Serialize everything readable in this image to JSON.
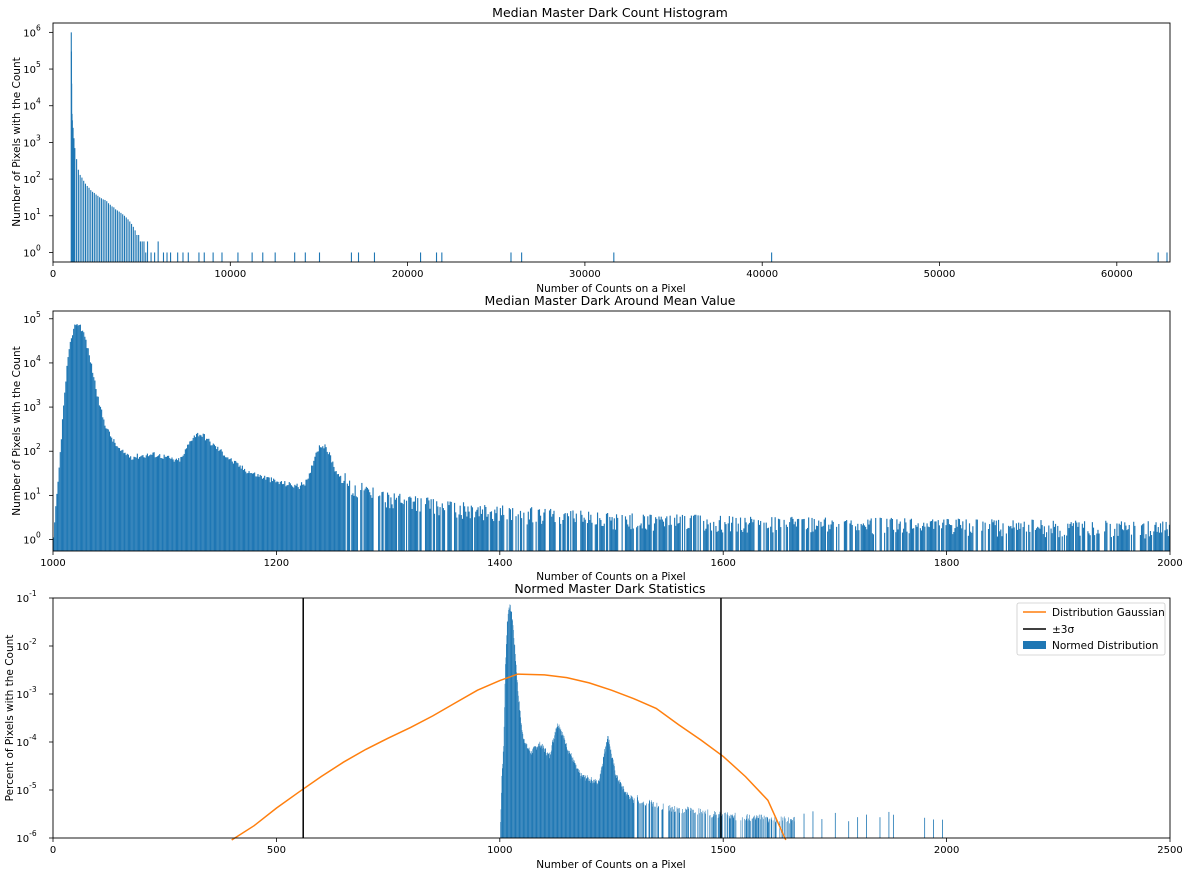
{
  "chart_data": [
    {
      "type": "bar",
      "title": "Median Master Dark Count Histogram",
      "xlabel": "Number of Counts on a Pixel",
      "ylabel": "Number of Pixels with the Count",
      "xlim": [
        0,
        63000
      ],
      "ylim": [
        0.55,
        1800000
      ],
      "yscale": "log",
      "xticks": [
        0,
        10000,
        20000,
        30000,
        40000,
        50000,
        60000
      ],
      "yticks": [
        1,
        10,
        100,
        1000,
        10000,
        100000,
        1000000
      ],
      "color": "#1f77b4",
      "bars": [
        [
          1000,
          1000000
        ],
        [
          1010,
          300000
        ],
        [
          1020,
          40000
        ],
        [
          1040,
          6000
        ],
        [
          1060,
          4000
        ],
        [
          1100,
          2500
        ],
        [
          1150,
          1300
        ],
        [
          1200,
          700
        ],
        [
          1300,
          350
        ],
        [
          1400,
          180
        ],
        [
          1500,
          130
        ],
        [
          1600,
          110
        ],
        [
          1700,
          90
        ],
        [
          1800,
          75
        ],
        [
          1900,
          65
        ],
        [
          2000,
          58
        ],
        [
          2100,
          50
        ],
        [
          2200,
          45
        ],
        [
          2300,
          42
        ],
        [
          2400,
          38
        ],
        [
          2500,
          35
        ],
        [
          2600,
          32
        ],
        [
          2700,
          30
        ],
        [
          2800,
          28
        ],
        [
          2900,
          27
        ],
        [
          3000,
          25
        ],
        [
          3100,
          22
        ],
        [
          3200,
          20
        ],
        [
          3300,
          18
        ],
        [
          3400,
          17
        ],
        [
          3500,
          15
        ],
        [
          3600,
          14
        ],
        [
          3700,
          13
        ],
        [
          3800,
          12
        ],
        [
          3900,
          11
        ],
        [
          4000,
          10
        ],
        [
          4100,
          9
        ],
        [
          4200,
          8
        ],
        [
          4300,
          7
        ],
        [
          4400,
          6
        ],
        [
          4500,
          5
        ],
        [
          4600,
          4
        ],
        [
          4700,
          3
        ],
        [
          4800,
          3
        ],
        [
          4900,
          2
        ],
        [
          5000,
          2
        ],
        [
          5100,
          2
        ],
        [
          5200,
          1
        ],
        [
          5300,
          2
        ],
        [
          5500,
          1
        ],
        [
          5700,
          1
        ],
        [
          5900,
          2
        ],
        [
          6200,
          1
        ],
        [
          6400,
          1
        ],
        [
          6600,
          1
        ],
        [
          7000,
          1
        ],
        [
          7300,
          1
        ],
        [
          7600,
          1
        ],
        [
          8200,
          1
        ],
        [
          8500,
          1
        ],
        [
          9000,
          1
        ],
        [
          9500,
          1
        ],
        [
          10400,
          1
        ],
        [
          11200,
          1
        ],
        [
          11800,
          1
        ],
        [
          12500,
          1
        ],
        [
          13600,
          1
        ],
        [
          14200,
          1
        ],
        [
          15000,
          1
        ],
        [
          16800,
          1
        ],
        [
          17200,
          1
        ],
        [
          18100,
          1
        ],
        [
          20700,
          1
        ],
        [
          21600,
          1
        ],
        [
          21900,
          1
        ],
        [
          25800,
          1
        ],
        [
          26400,
          1
        ],
        [
          31600,
          1
        ],
        [
          40500,
          1
        ],
        [
          62300,
          1
        ],
        [
          62800,
          1
        ]
      ]
    },
    {
      "type": "bar",
      "title": "Median Master Dark Around Mean Value",
      "xlabel": "Number of Counts on a Pixel",
      "ylabel": "Number of Pixels with the Count",
      "xlim": [
        1000,
        2000
      ],
      "ylim": [
        0.55,
        150000
      ],
      "yscale": "log",
      "xticks": [
        1000,
        1200,
        1400,
        1600,
        1800,
        2000
      ],
      "yticks": [
        1,
        10,
        100,
        1000,
        10000,
        100000
      ],
      "color": "#1f77b4",
      "profile": [
        [
          1000,
          1
        ],
        [
          1002,
          5
        ],
        [
          1005,
          40
        ],
        [
          1008,
          500
        ],
        [
          1012,
          8000
        ],
        [
          1016,
          40000
        ],
        [
          1020,
          80000
        ],
        [
          1024,
          70000
        ],
        [
          1028,
          40000
        ],
        [
          1032,
          15000
        ],
        [
          1036,
          5000
        ],
        [
          1040,
          1500
        ],
        [
          1045,
          500
        ],
        [
          1050,
          250
        ],
        [
          1055,
          150
        ],
        [
          1060,
          100
        ],
        [
          1070,
          75
        ],
        [
          1080,
          80
        ],
        [
          1090,
          85
        ],
        [
          1100,
          75
        ],
        [
          1110,
          60
        ],
        [
          1115,
          70
        ],
        [
          1120,
          130
        ],
        [
          1125,
          220
        ],
        [
          1130,
          250
        ],
        [
          1135,
          220
        ],
        [
          1140,
          160
        ],
        [
          1150,
          100
        ],
        [
          1160,
          60
        ],
        [
          1170,
          40
        ],
        [
          1180,
          30
        ],
        [
          1190,
          25
        ],
        [
          1200,
          20
        ],
        [
          1210,
          18
        ],
        [
          1220,
          16
        ],
        [
          1228,
          22
        ],
        [
          1232,
          55
        ],
        [
          1236,
          110
        ],
        [
          1240,
          140
        ],
        [
          1244,
          120
        ],
        [
          1248,
          75
        ],
        [
          1252,
          40
        ],
        [
          1258,
          22
        ],
        [
          1265,
          13
        ],
        [
          1275,
          10
        ],
        [
          1290,
          8
        ],
        [
          1300,
          6
        ],
        [
          1320,
          5
        ],
        [
          1350,
          4
        ],
        [
          1400,
          3
        ],
        [
          1450,
          2.5
        ],
        [
          1500,
          2
        ],
        [
          1600,
          1.8
        ],
        [
          1700,
          1.6
        ],
        [
          1800,
          1.5
        ],
        [
          1900,
          1.4
        ],
        [
          2000,
          1.3
        ]
      ]
    },
    {
      "type": "bar",
      "title": "Normed Master Dark Statistics",
      "xlabel": "Number of Counts on a Pixel",
      "ylabel": "Percent of Pixels with the Count",
      "xlim": [
        0,
        2500
      ],
      "ylim": [
        1e-06,
        0.1
      ],
      "yscale": "log",
      "xticks": [
        0,
        500,
        1000,
        1500,
        2000,
        2500
      ],
      "yticks": [
        1e-06,
        1e-05,
        0.0001,
        0.001,
        0.01,
        0.1
      ],
      "ytick_exponents": [
        -6,
        -5,
        -4,
        -3,
        -2,
        -1
      ],
      "series": [
        {
          "name": "Distribution Gaussian",
          "kind": "line",
          "color": "#ff7f0e",
          "x": [
            400,
            450,
            500,
            550,
            600,
            650,
            700,
            750,
            800,
            850,
            900,
            950,
            1000,
            1040,
            1100,
            1150,
            1200,
            1250,
            1300,
            1350,
            1400,
            1450,
            1500,
            1550,
            1600,
            1640
          ],
          "y": [
            9e-07,
            1.8e-06,
            4.2e-06,
            9e-06,
            1.9e-05,
            3.8e-05,
            7e-05,
            0.00012,
            0.0002,
            0.00035,
            0.00065,
            0.0012,
            0.0019,
            0.0026,
            0.0025,
            0.0022,
            0.0017,
            0.0012,
            0.0008,
            0.0005,
            0.00023,
            0.00011,
            5e-05,
            1.9e-05,
            6.1e-06,
            9e-07
          ]
        },
        {
          "name": "±3σ",
          "kind": "vline",
          "color": "#000000",
          "x": [
            560,
            1495
          ]
        },
        {
          "name": "Normed Distribution",
          "kind": "bar",
          "color": "#1f77b4",
          "profile": [
            [
              1000,
              1e-06
            ],
            [
              1004,
              2e-05
            ],
            [
              1008,
              8e-05
            ],
            [
              1012,
              0.004
            ],
            [
              1016,
              0.03
            ],
            [
              1020,
              0.07
            ],
            [
              1024,
              0.06
            ],
            [
              1028,
              0.035
            ],
            [
              1032,
              0.012
            ],
            [
              1036,
              0.004
            ],
            [
              1040,
              0.0012
            ],
            [
              1045,
              0.0004
            ],
            [
              1050,
              0.00015
            ],
            [
              1060,
              8e-05
            ],
            [
              1070,
              6e-05
            ],
            [
              1080,
              8e-05
            ],
            [
              1090,
              9e-05
            ],
            [
              1100,
              7e-05
            ],
            [
              1110,
              5e-05
            ],
            [
              1120,
              0.00012
            ],
            [
              1125,
              0.0002
            ],
            [
              1130,
              0.00024
            ],
            [
              1135,
              0.0002
            ],
            [
              1140,
              0.00014
            ],
            [
              1150,
              8e-05
            ],
            [
              1160,
              5e-05
            ],
            [
              1170,
              3e-05
            ],
            [
              1180,
              2e-05
            ],
            [
              1200,
              1.7e-05
            ],
            [
              1220,
              1.4e-05
            ],
            [
              1232,
              5e-05
            ],
            [
              1240,
              0.00013
            ],
            [
              1244,
              0.00011
            ],
            [
              1250,
              5e-05
            ],
            [
              1260,
              2e-05
            ],
            [
              1280,
              9e-06
            ],
            [
              1300,
              6e-06
            ],
            [
              1350,
              4e-06
            ],
            [
              1400,
              3.5e-06
            ],
            [
              1500,
              2.5e-06
            ],
            [
              1650,
              2e-06
            ]
          ],
          "sparse": [
            1680,
            1700,
            1720,
            1750,
            1780,
            1800,
            1820,
            1850,
            1870,
            1880,
            1950,
            1970,
            1990
          ]
        }
      ],
      "legend": {
        "placement": "upper right",
        "entries": [
          "Distribution Gaussian",
          "±3σ",
          "Normed Distribution"
        ]
      }
    }
  ]
}
